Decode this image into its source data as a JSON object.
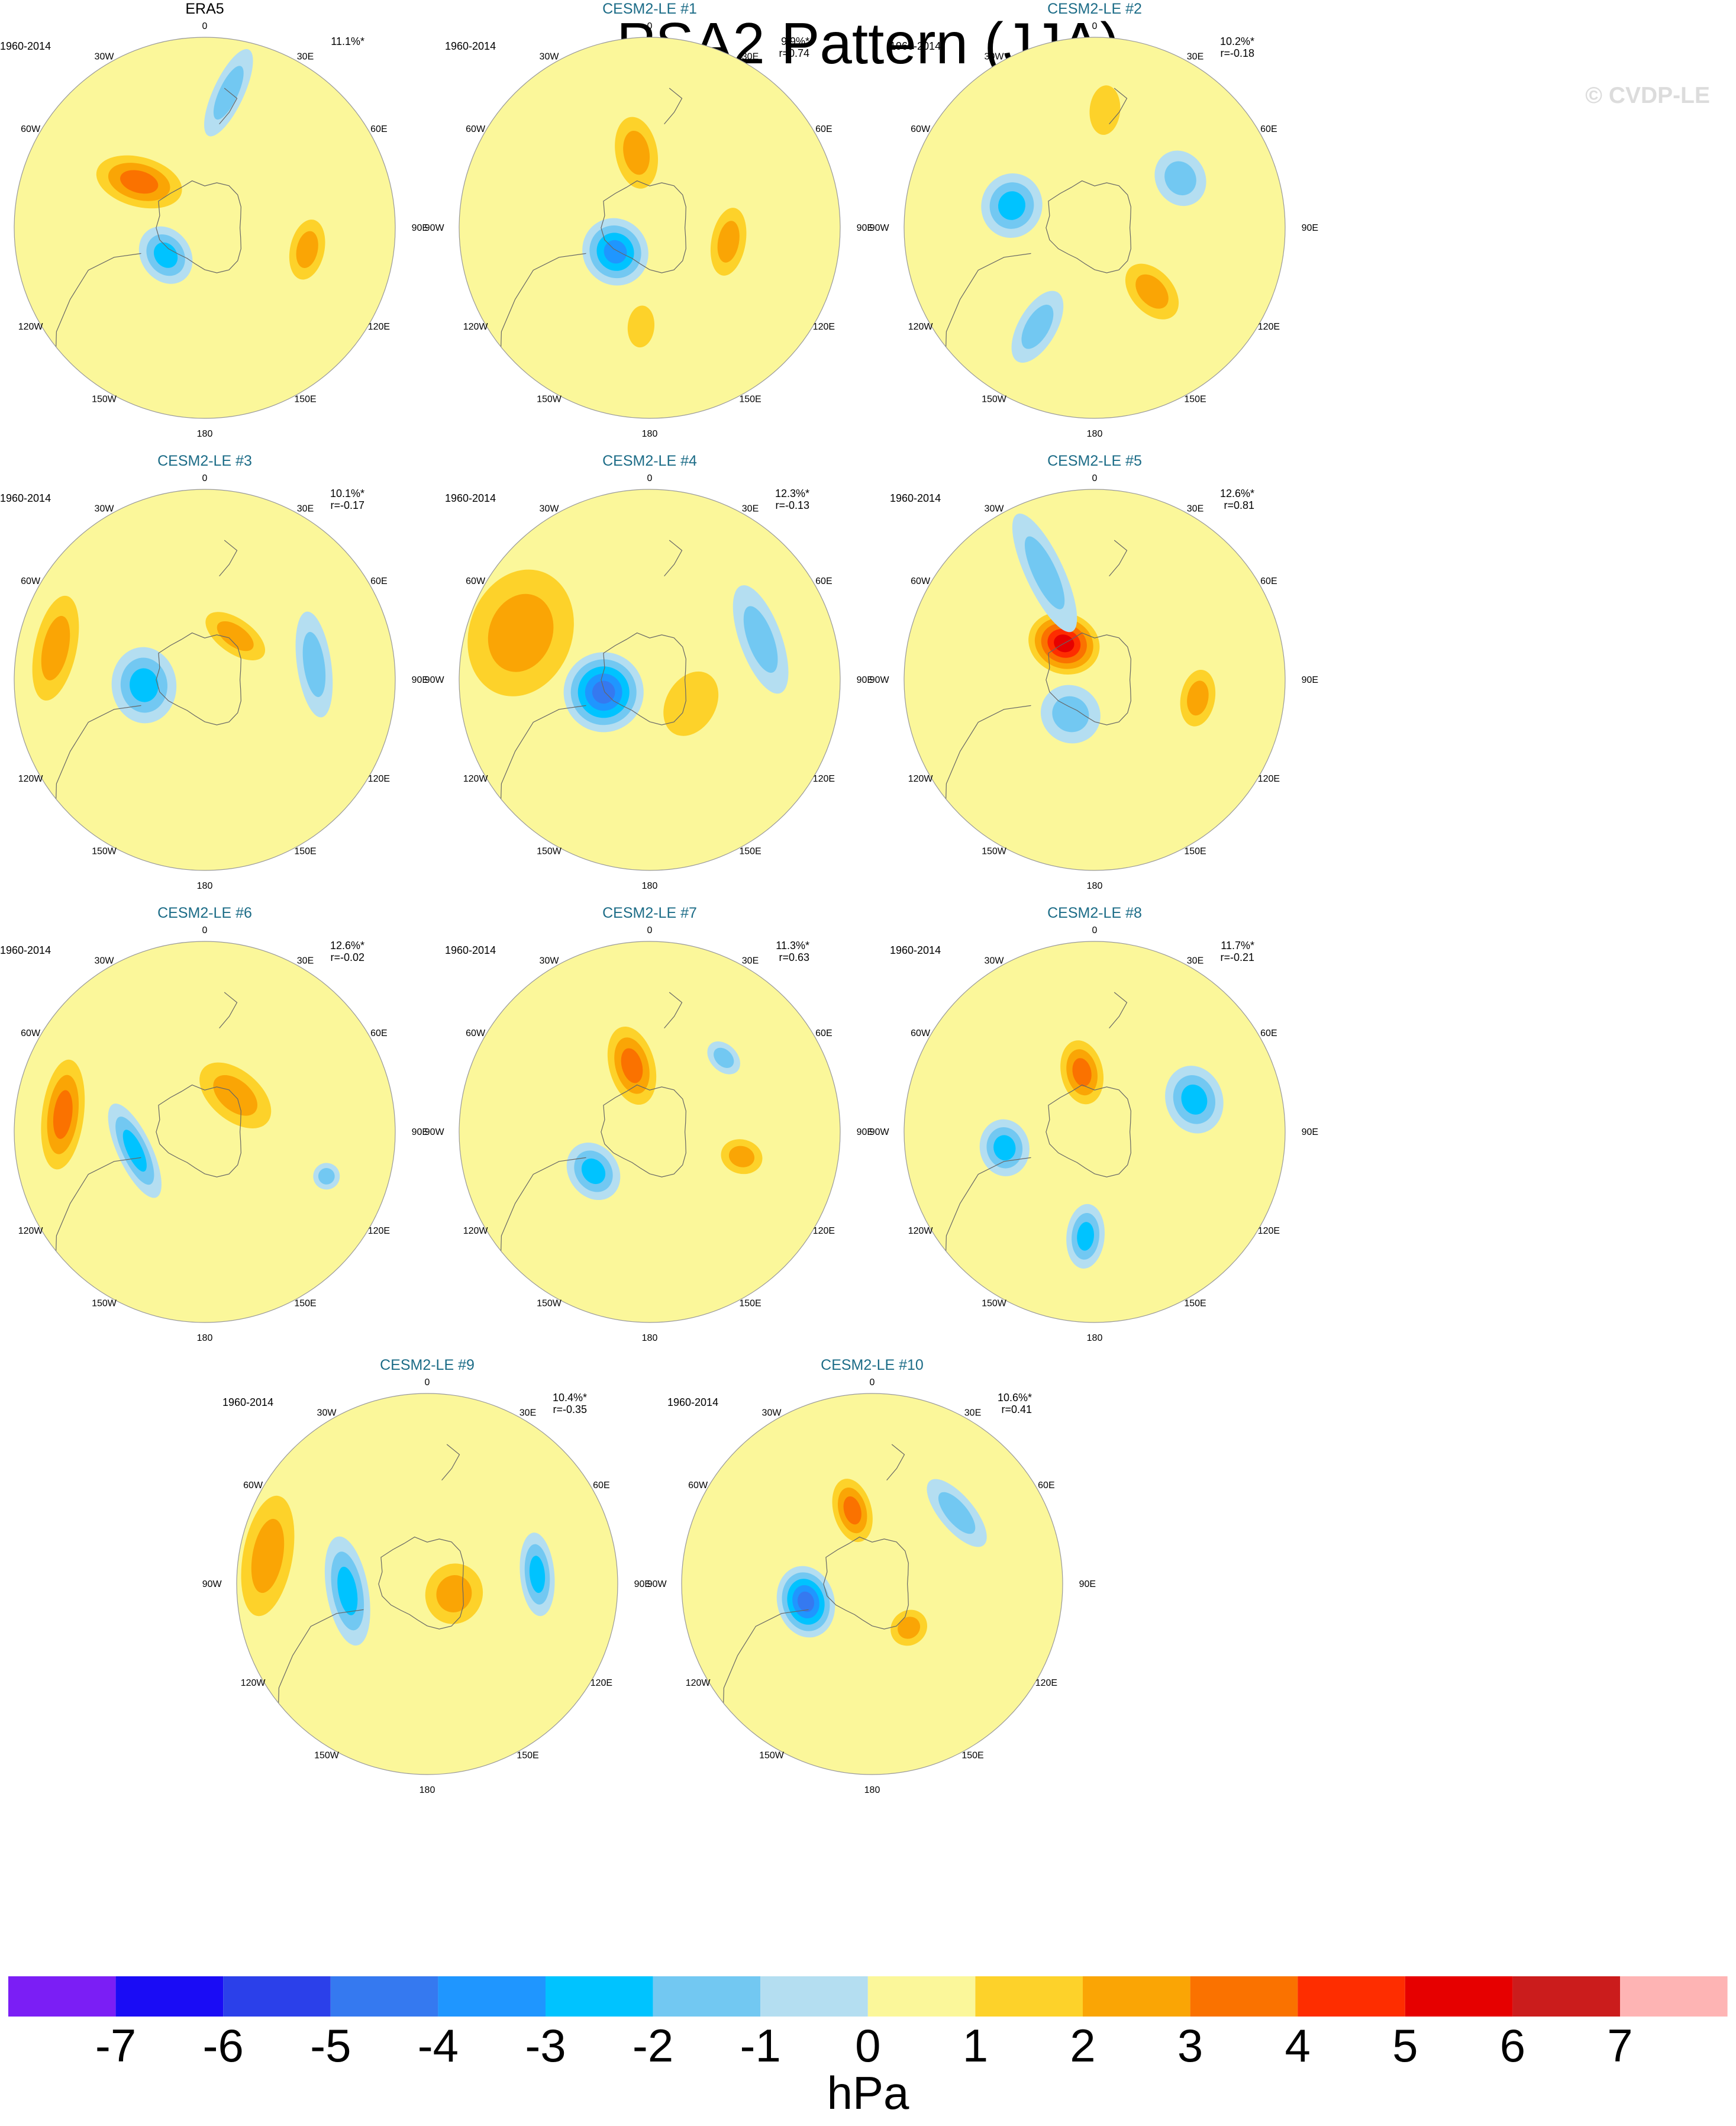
{
  "title": "PSA2 Pattern (JJA)",
  "watermark": "© CVDP-LE",
  "units": "hPa",
  "period": "1960-2014",
  "longitude_labels": [
    "0",
    "30E",
    "60E",
    "90E",
    "120E",
    "150E",
    "180",
    "150W",
    "120W",
    "90W",
    "60W",
    "30W"
  ],
  "colorbar": {
    "colors": [
      "#7b1ef5",
      "#1a0cf5",
      "#2b40ea",
      "#3579f0",
      "#1f96ff",
      "#00c3ff",
      "#72c8f2",
      "#b4def1",
      "#fbf79a",
      "#fdd22a",
      "#faa505",
      "#fa7200",
      "#fe2d00",
      "#e60000",
      "#cb1c1c",
      "#feb4b4"
    ],
    "labels": [
      "-7",
      "-6",
      "-5",
      "-4",
      "-3",
      "-2",
      "-1",
      "0",
      "1",
      "2",
      "3",
      "4",
      "5",
      "6",
      "7"
    ]
  },
  "panels": [
    {
      "name": "ERA5",
      "stats": [
        "11.1%*"
      ],
      "features": [
        {
          "v": -3,
          "lon": -55,
          "r": 0.25,
          "s": 0.13,
          "t": 0.16,
          "rot": 0
        },
        {
          "v": 3,
          "lon": -125,
          "r": 0.42,
          "s": 0.23,
          "t": 0.13,
          "rot": 20
        },
        {
          "v": 2,
          "lon": 78,
          "r": 0.55,
          "s": 0.09,
          "t": 0.16,
          "rot": 0
        },
        {
          "v": -2,
          "lon": 170,
          "r": 0.72,
          "s": 0.25,
          "t": 0.08,
          "rot": -15
        }
      ]
    },
    {
      "name": "CESM2-LE #1",
      "stats": [
        "9.9%*",
        "r=0.74"
      ],
      "features": [
        {
          "v": -4,
          "lon": -55,
          "r": 0.22,
          "s": 0.17,
          "t": 0.18,
          "rot": 0
        },
        {
          "v": 2,
          "lon": -170,
          "r": 0.4,
          "s": 0.19,
          "t": 0.11,
          "rot": 0
        },
        {
          "v": 2,
          "lon": 80,
          "r": 0.42,
          "s": 0.09,
          "t": 0.18,
          "rot": 0
        },
        {
          "v": 1,
          "lon": -5,
          "r": 0.52,
          "s": 0.11,
          "t": 0.07,
          "rot": 0
        }
      ]
    },
    {
      "name": "CESM2-LE #2",
      "stats": [
        "10.2%*",
        "r=-0.18"
      ],
      "features": [
        {
          "v": -3,
          "lon": -105,
          "r": 0.45,
          "s": 0.16,
          "t": 0.17,
          "rot": 0
        },
        {
          "v": -2,
          "lon": 120,
          "r": 0.52,
          "s": 0.13,
          "t": 0.15,
          "rot": 0
        },
        {
          "v": 2,
          "lon": 42,
          "r": 0.45,
          "s": 0.17,
          "t": 0.11,
          "rot": 0
        },
        {
          "v": -2,
          "lon": -30,
          "r": 0.6,
          "s": 0.21,
          "t": 0.1,
          "rot": 0
        },
        {
          "v": 1,
          "lon": 175,
          "r": 0.62,
          "s": 0.13,
          "t": 0.08,
          "rot": 0
        }
      ]
    },
    {
      "name": "CESM2-LE #3",
      "stats": [
        "10.1%*",
        "r=-0.17"
      ],
      "features": [
        {
          "v": -3,
          "lon": -85,
          "r": 0.32,
          "s": 0.17,
          "t": 0.2,
          "rot": 0
        },
        {
          "v": 2,
          "lon": -102,
          "r": 0.8,
          "s": 0.11,
          "t": 0.28,
          "rot": 0
        },
        {
          "v": 2,
          "lon": 145,
          "r": 0.28,
          "s": 0.09,
          "t": 0.18,
          "rot": 0
        },
        {
          "v": -2,
          "lon": 98,
          "r": 0.58,
          "s": 0.09,
          "t": 0.28,
          "rot": 0
        }
      ]
    },
    {
      "name": "CESM2-LE #4",
      "stats": [
        "12.3%*",
        "r=-0.13"
      ],
      "features": [
        {
          "v": -5,
          "lon": -75,
          "r": 0.25,
          "s": 0.21,
          "t": 0.21,
          "rot": 0
        },
        {
          "v": 2,
          "lon": -110,
          "r": 0.72,
          "s": 0.27,
          "t": 0.34,
          "rot": 0
        },
        {
          "v": -2,
          "lon": 110,
          "r": 0.62,
          "s": 0.11,
          "t": 0.3,
          "rot": 0
        },
        {
          "v": 1,
          "lon": 60,
          "r": 0.25,
          "s": 0.13,
          "t": 0.18,
          "rot": 0
        }
      ]
    },
    {
      "name": "CESM2-LE #5",
      "stats": [
        "12.6%*",
        "r=0.81"
      ],
      "features": [
        {
          "v": 5,
          "lon": -140,
          "r": 0.25,
          "s": 0.19,
          "t": 0.16,
          "rot": 30
        },
        {
          "v": -2,
          "lon": -35,
          "r": 0.22,
          "s": 0.15,
          "t": 0.16,
          "rot": 0
        },
        {
          "v": -2,
          "lon": -155,
          "r": 0.62,
          "s": 0.34,
          "t": 0.1,
          "rot": 0
        },
        {
          "v": 2,
          "lon": 80,
          "r": 0.55,
          "s": 0.09,
          "t": 0.15,
          "rot": 0
        }
      ]
    },
    {
      "name": "CESM2-LE #6",
      "stats": [
        "12.6%*",
        "r=-0.02"
      ],
      "features": [
        {
          "v": -3,
          "lon": -75,
          "r": 0.38,
          "s": 0.09,
          "t": 0.27,
          "rot": 10
        },
        {
          "v": 3,
          "lon": -97,
          "r": 0.75,
          "s": 0.11,
          "t": 0.29,
          "rot": 0
        },
        {
          "v": 2,
          "lon": 140,
          "r": 0.25,
          "s": 0.13,
          "t": 0.22,
          "rot": 0
        },
        {
          "v": -2,
          "lon": 70,
          "r": 0.68,
          "s": 0.07,
          "t": 0.07,
          "rot": 0
        }
      ]
    },
    {
      "name": "CESM2-LE #7",
      "stats": [
        "11.3%*",
        "r=0.63"
      ],
      "features": [
        {
          "v": -3,
          "lon": -55,
          "r": 0.36,
          "s": 0.13,
          "t": 0.16,
          "rot": 0
        },
        {
          "v": 3,
          "lon": -165,
          "r": 0.36,
          "s": 0.21,
          "t": 0.12,
          "rot": 0
        },
        {
          "v": 2,
          "lon": 75,
          "r": 0.5,
          "s": 0.11,
          "t": 0.09,
          "rot": 0
        },
        {
          "v": -2,
          "lon": 135,
          "r": 0.55,
          "s": 0.07,
          "t": 0.1,
          "rot": 0
        }
      ]
    },
    {
      "name": "CESM2-LE #8",
      "stats": [
        "11.7%*",
        "r=-0.21"
      ],
      "features": [
        {
          "v": -3,
          "lon": -80,
          "r": 0.48,
          "s": 0.13,
          "t": 0.15,
          "rot": 0
        },
        {
          "v": -3,
          "lon": 108,
          "r": 0.55,
          "s": 0.15,
          "t": 0.18,
          "rot": 0
        },
        {
          "v": 3,
          "lon": -168,
          "r": 0.32,
          "s": 0.17,
          "t": 0.11,
          "rot": 0
        },
        {
          "v": -3,
          "lon": -5,
          "r": 0.55,
          "s": 0.17,
          "t": 0.1,
          "rot": 0
        }
      ]
    },
    {
      "name": "CESM2-LE #9",
      "stats": [
        "10.4%*",
        "r=-0.35"
      ],
      "features": [
        {
          "v": -3,
          "lon": -85,
          "r": 0.42,
          "s": 0.11,
          "t": 0.29,
          "rot": 5
        },
        {
          "v": 2,
          "lon": -100,
          "r": 0.85,
          "s": 0.13,
          "t": 0.32,
          "rot": 0
        },
        {
          "v": -3,
          "lon": 95,
          "r": 0.58,
          "s": 0.09,
          "t": 0.22,
          "rot": 0
        },
        {
          "v": 2,
          "lon": 70,
          "r": 0.15,
          "s": 0.15,
          "t": 0.16,
          "rot": 0
        }
      ]
    },
    {
      "name": "CESM2-LE #10",
      "stats": [
        "10.6%*",
        "r=0.41"
      ],
      "features": [
        {
          "v": -5,
          "lon": -75,
          "r": 0.36,
          "s": 0.15,
          "t": 0.19,
          "rot": 0
        },
        {
          "v": 3,
          "lon": -165,
          "r": 0.4,
          "s": 0.17,
          "t": 0.1,
          "rot": 0
        },
        {
          "v": -2,
          "lon": 130,
          "r": 0.58,
          "s": 0.09,
          "t": 0.22,
          "rot": 0
        },
        {
          "v": 2,
          "lon": 40,
          "r": 0.3,
          "s": 0.09,
          "t": 0.1,
          "rot": 0
        }
      ]
    }
  ]
}
